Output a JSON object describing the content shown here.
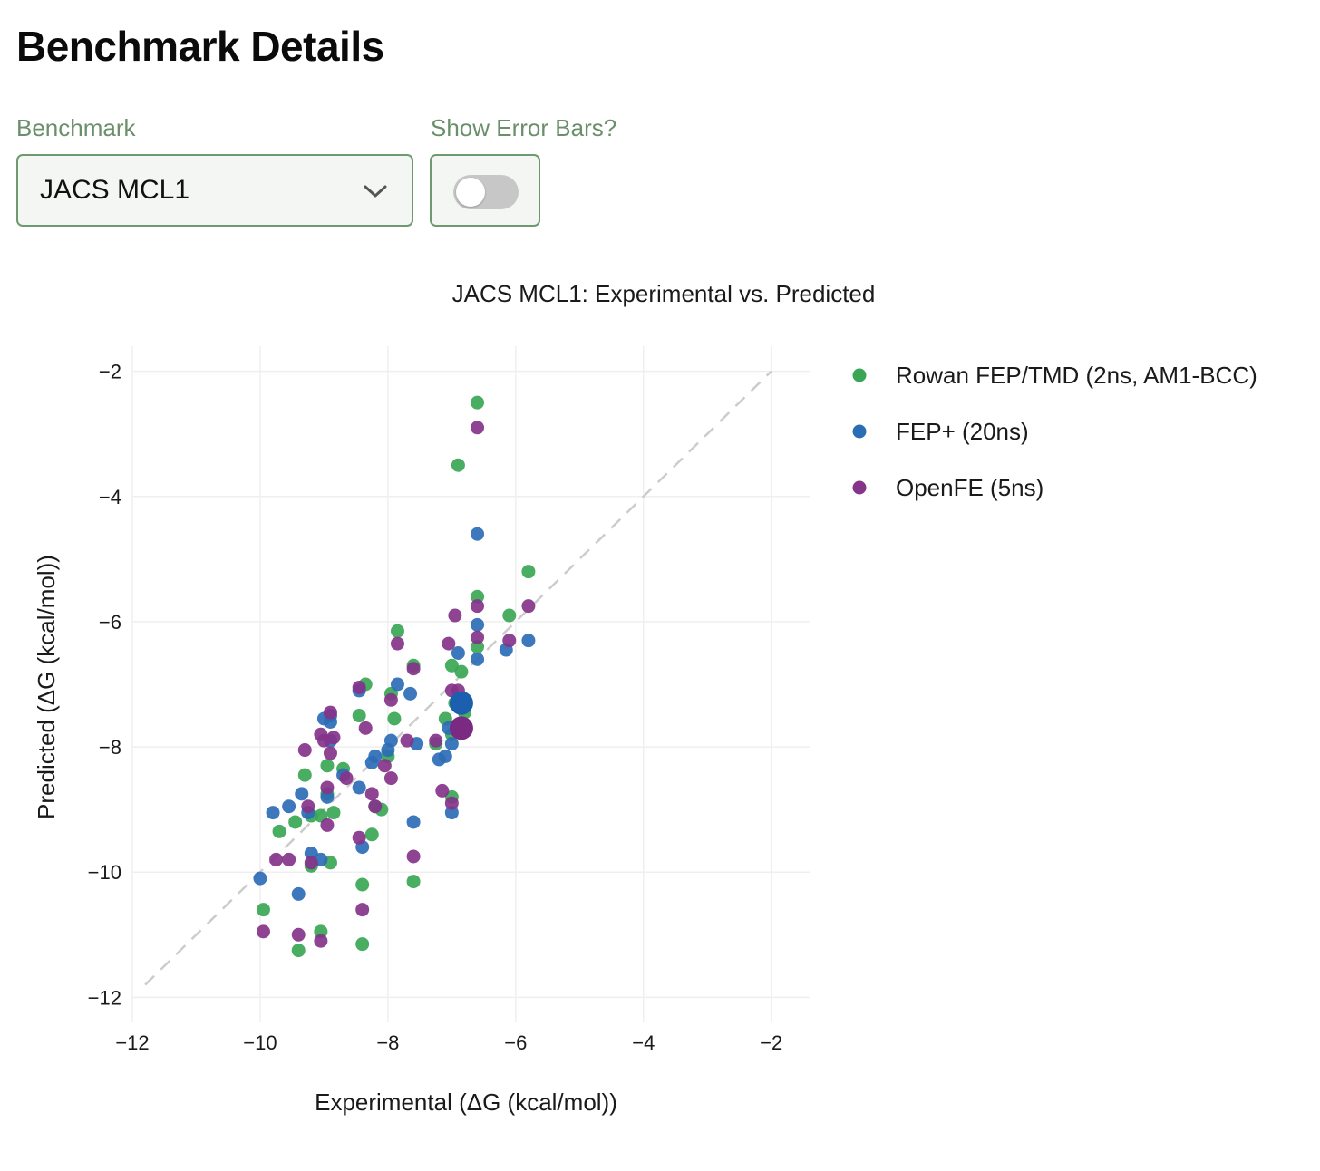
{
  "page": {
    "title": "Benchmark Details"
  },
  "controls": {
    "benchmark_label": "Benchmark",
    "benchmark_value": "JACS MCL1",
    "error_bars_label": "Show Error Bars?",
    "error_bars_on": false
  },
  "chart_data": {
    "type": "scatter",
    "title": "JACS MCL1: Experimental vs. Predicted",
    "xlabel": "Experimental (ΔG (kcal/mol))",
    "ylabel": "Predicted (ΔG (kcal/mol))",
    "xlim": [
      -12.0,
      -1.4
    ],
    "ylim": [
      -12.4,
      -1.6
    ],
    "xticks": [
      -12,
      -10,
      -8,
      -6,
      -4,
      -2
    ],
    "yticks": [
      -2,
      -4,
      -6,
      -8,
      -10,
      -12
    ],
    "grid": true,
    "legend_position": "right",
    "diagonal": {
      "from": [
        -11.8,
        -11.8
      ],
      "to": [
        -2.0,
        -2.0
      ],
      "style": "dashed",
      "color": "#cccccc"
    },
    "series": [
      {
        "name": "Rowan FEP/TMD (2ns, AM1-BCC)",
        "color": "#3aa655",
        "points": [
          [
            -6.6,
            -2.5
          ],
          [
            -6.9,
            -3.5
          ],
          [
            -5.8,
            -5.2
          ],
          [
            -6.6,
            -5.6
          ],
          [
            -6.1,
            -5.9
          ],
          [
            -6.6,
            -6.4
          ],
          [
            -7.85,
            -6.15
          ],
          [
            -7.6,
            -6.7
          ],
          [
            -7.0,
            -6.7
          ],
          [
            -6.85,
            -6.8
          ],
          [
            -7.95,
            -7.15
          ],
          [
            -8.35,
            -7.0
          ],
          [
            -8.45,
            -7.5
          ],
          [
            -7.9,
            -7.55
          ],
          [
            -7.1,
            -7.55
          ],
          [
            -6.95,
            -7.3
          ],
          [
            -6.8,
            -7.45
          ],
          [
            -7.0,
            -7.8
          ],
          [
            -7.25,
            -7.95
          ],
          [
            -8.0,
            -8.15
          ],
          [
            -8.95,
            -8.3
          ],
          [
            -8.7,
            -8.35
          ],
          [
            -9.3,
            -8.45
          ],
          [
            -8.95,
            -8.75
          ],
          [
            -8.2,
            -8.95
          ],
          [
            -8.1,
            -9.0
          ],
          [
            -9.05,
            -9.1
          ],
          [
            -8.85,
            -9.05
          ],
          [
            -9.2,
            -9.1
          ],
          [
            -9.45,
            -9.2
          ],
          [
            -9.7,
            -9.35
          ],
          [
            -8.25,
            -9.4
          ],
          [
            -9.2,
            -9.9
          ],
          [
            -8.9,
            -9.85
          ],
          [
            -8.4,
            -10.2
          ],
          [
            -7.6,
            -10.15
          ],
          [
            -9.95,
            -10.6
          ],
          [
            -9.05,
            -10.95
          ],
          [
            -9.4,
            -11.25
          ],
          [
            -8.4,
            -11.15
          ],
          [
            -7.0,
            -8.8
          ]
        ]
      },
      {
        "name": "FEP+ (20ns)",
        "color": "#2b6db5",
        "points": [
          [
            -6.6,
            -4.6
          ],
          [
            -6.6,
            -6.05
          ],
          [
            -5.8,
            -6.3
          ],
          [
            -6.15,
            -6.45
          ],
          [
            -6.6,
            -6.6
          ],
          [
            -6.9,
            -6.5
          ],
          [
            -7.85,
            -7.0
          ],
          [
            -7.65,
            -7.15
          ],
          [
            -8.45,
            -7.1
          ],
          [
            -8.9,
            -7.5
          ],
          [
            -9.0,
            -7.55
          ],
          [
            -8.9,
            -7.6
          ],
          [
            -7.95,
            -7.9
          ],
          [
            -7.55,
            -7.95
          ],
          [
            -7.0,
            -7.95
          ],
          [
            -7.05,
            -7.7
          ],
          [
            -8.2,
            -8.15
          ],
          [
            -8.25,
            -8.25
          ],
          [
            -8.0,
            -8.05
          ],
          [
            -7.2,
            -8.2
          ],
          [
            -7.1,
            -8.15
          ],
          [
            -8.7,
            -8.45
          ],
          [
            -9.35,
            -8.75
          ],
          [
            -8.45,
            -8.65
          ],
          [
            -8.95,
            -8.8
          ],
          [
            -9.55,
            -8.95
          ],
          [
            -9.8,
            -9.05
          ],
          [
            -9.25,
            -9.05
          ],
          [
            -7.0,
            -9.05
          ],
          [
            -7.6,
            -9.2
          ],
          [
            -8.4,
            -9.6
          ],
          [
            -9.2,
            -9.7
          ],
          [
            -9.05,
            -9.8
          ],
          [
            -10.0,
            -10.1
          ],
          [
            -9.4,
            -10.35
          ],
          [
            -8.9,
            -7.9
          ]
        ]
      },
      {
        "name": "OpenFE (5ns)",
        "color": "#86338a",
        "points": [
          [
            -6.6,
            -2.9
          ],
          [
            -5.8,
            -5.75
          ],
          [
            -6.6,
            -5.75
          ],
          [
            -6.95,
            -5.9
          ],
          [
            -6.1,
            -6.3
          ],
          [
            -6.6,
            -6.25
          ],
          [
            -7.05,
            -6.35
          ],
          [
            -7.85,
            -6.35
          ],
          [
            -7.6,
            -6.75
          ],
          [
            -8.45,
            -7.05
          ],
          [
            -7.95,
            -7.25
          ],
          [
            -8.35,
            -7.7
          ],
          [
            -7.0,
            -7.1
          ],
          [
            -6.9,
            -7.1
          ],
          [
            -8.9,
            -7.45
          ],
          [
            -9.05,
            -7.8
          ],
          [
            -8.85,
            -7.85
          ],
          [
            -9.0,
            -7.9
          ],
          [
            -9.3,
            -8.05
          ],
          [
            -8.9,
            -8.1
          ],
          [
            -7.25,
            -7.9
          ],
          [
            -7.7,
            -7.9
          ],
          [
            -8.05,
            -8.3
          ],
          [
            -8.65,
            -8.5
          ],
          [
            -7.95,
            -8.5
          ],
          [
            -8.95,
            -8.65
          ],
          [
            -8.25,
            -8.75
          ],
          [
            -7.15,
            -8.7
          ],
          [
            -7.0,
            -8.9
          ],
          [
            -8.2,
            -8.95
          ],
          [
            -9.25,
            -8.95
          ],
          [
            -8.95,
            -9.25
          ],
          [
            -8.45,
            -9.45
          ],
          [
            -9.55,
            -9.8
          ],
          [
            -9.2,
            -9.85
          ],
          [
            -9.75,
            -9.8
          ],
          [
            -7.6,
            -9.75
          ],
          [
            -8.4,
            -10.6
          ],
          [
            -9.95,
            -10.95
          ],
          [
            -9.4,
            -11.0
          ],
          [
            -9.05,
            -11.1
          ]
        ]
      }
    ],
    "highlighted_points": [
      {
        "series": "FEP+ (20ns)",
        "x": -6.85,
        "y": -7.3,
        "color": "#1b5fae"
      },
      {
        "series": "OpenFE (5ns)",
        "x": -6.85,
        "y": -7.7,
        "color": "#7a2a80"
      }
    ]
  }
}
